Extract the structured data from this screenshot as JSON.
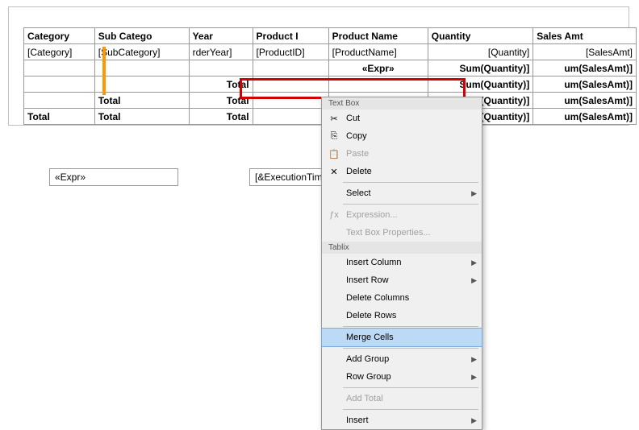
{
  "tablix": {
    "headers": {
      "category": "Category",
      "subcategory": "Sub Catego",
      "year": "Year",
      "product_id": "Product I",
      "product_name": "Product Name",
      "quantity": "Quantity",
      "sales_amt": "Sales Amt"
    },
    "data_row": {
      "category": "[Category]",
      "subcategory": "[SubCategory]",
      "year": "rderYear]",
      "product_id": "[ProductID]",
      "product_name": "[ProductName]",
      "quantity": "[Quantity]",
      "sales_amt": "[SalesAmt]"
    },
    "group_rows": [
      {
        "c1": "",
        "c2": "",
        "c3": "",
        "c4": "",
        "c5": "«Expr»",
        "c6": "Sum(Quantity)]",
        "c7": "um(SalesAmt)]"
      },
      {
        "c1": "",
        "c2": "",
        "c3": "Total",
        "c4": "",
        "c5": "",
        "c6": "Sum(Quantity)]",
        "c7": "um(SalesAmt)]"
      },
      {
        "c1": "",
        "c2": "Total",
        "c3": "Total",
        "c4": "",
        "c5": "",
        "c6": "Sum(Quantity)]",
        "c7": "um(SalesAmt)]"
      },
      {
        "c1": "Total",
        "c2": "Total",
        "c3": "Total",
        "c4": "",
        "c5": "",
        "c6": "Sum(Quantity)]",
        "c7": "um(SalesAmt)]"
      }
    ]
  },
  "footer": {
    "expr": "«Expr»",
    "exec_time": "[&ExecutionTim"
  },
  "menu": {
    "section1": "Text Box",
    "cut": "Cut",
    "copy": "Copy",
    "paste": "Paste",
    "delete": "Delete",
    "select": "Select",
    "expression": "Expression...",
    "text_box_props": "Text Box Properties...",
    "section2": "Tablix",
    "insert_column": "Insert Column",
    "insert_row": "Insert Row",
    "delete_columns": "Delete Columns",
    "delete_rows": "Delete Rows",
    "merge_cells": "Merge Cells",
    "add_group": "Add Group",
    "row_group": "Row Group",
    "add_total": "Add Total",
    "insert": "Insert"
  },
  "styling": {
    "highlight_color": "#d40000",
    "menu_highlight": "#bcdaf5",
    "border_color": "#999999"
  }
}
